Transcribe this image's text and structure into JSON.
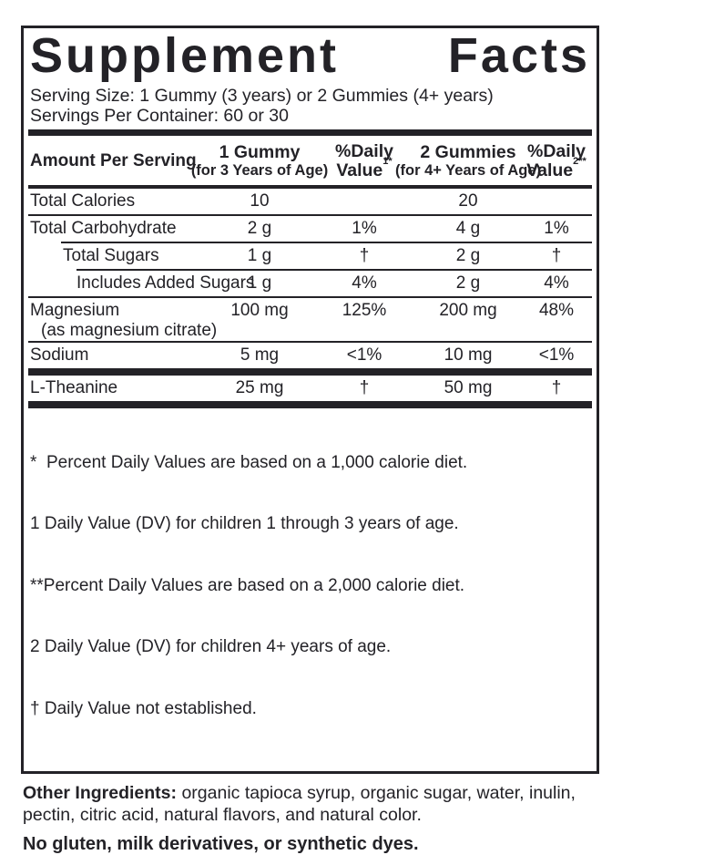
{
  "label": {
    "title": "Supplement Facts",
    "serving_size": "Serving Size: 1 Gummy (3 years) or 2 Gummies (4+ years)",
    "servings_per_container": "Servings Per Container: 60 or 30",
    "header": {
      "amount_per_serving": "Amount Per Serving",
      "gummy1_line1": "1 Gummy",
      "gummy1_line2": "(for 3 Years of Age)",
      "dv1_line1": "%Daily",
      "dv1_line2": "Value",
      "dv1_sup": "1*",
      "gummy2_line1": "2 Gummies",
      "gummy2_line2": "(for 4+ Years of Age)",
      "dv2_line1": "%Daily",
      "dv2_line2": "Value",
      "dv2_sup": "2**"
    },
    "rows": [
      {
        "name": "Total Calories",
        "amount1": "10",
        "dv1": "",
        "amount2": "20",
        "dv2": ""
      },
      {
        "name": "Total Carbohydrate",
        "amount1": "2 g",
        "dv1": "1%",
        "amount2": "4 g",
        "dv2": "1%"
      },
      {
        "name": "Total Sugars",
        "amount1": "1 g",
        "dv1": "†",
        "amount2": "2 g",
        "dv2": "†"
      },
      {
        "name": "Includes Added Sugars",
        "amount1": "1 g",
        "dv1": "4%",
        "amount2": "2 g",
        "dv2": "4%"
      },
      {
        "name": "Magnesium",
        "subname": "(as magnesium citrate)",
        "amount1": "100 mg",
        "dv1": "125%",
        "amount2": "200 mg",
        "dv2": "48%"
      },
      {
        "name": "Sodium",
        "amount1": "5 mg",
        "dv1": "<1%",
        "amount2": "10 mg",
        "dv2": "<1%"
      },
      {
        "name": "L-Theanine",
        "amount1": "25 mg",
        "dv1": "†",
        "amount2": "50 mg",
        "dv2": "†"
      }
    ],
    "footnotes": [
      "*  Percent Daily Values are based on a 1,000 calorie diet.",
      "1 Daily Value (DV) for children 1 through 3 years of age.",
      "**Percent Daily Values are based on a 2,000 calorie diet.",
      "2 Daily Value (DV) for children 4+ years of age.",
      "† Daily Value not established."
    ],
    "other_ingredients_label": "Other Ingredients:",
    "other_ingredients_text": " organic tapioca syrup, organic sugar, water, inulin, pectin, citric acid, natural flavors, and natural color.",
    "allergen_statement": "No gluten, milk derivatives, or synthetic dyes.",
    "colors": {
      "ink": "#232227",
      "background": "#ffffff"
    }
  }
}
